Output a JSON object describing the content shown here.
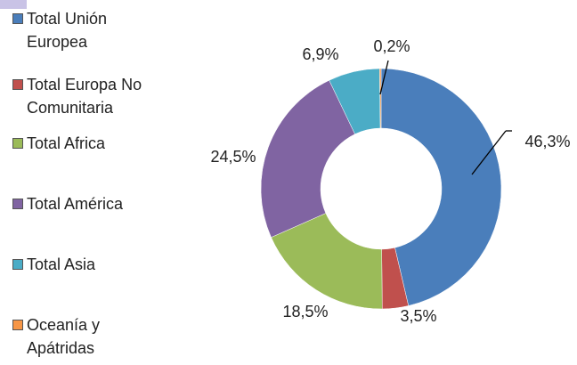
{
  "chart_data": {
    "type": "donut",
    "categories": [
      "Total Unión Europea",
      "Total Europa No Comunitaria",
      "Total Africa",
      "Total América",
      "Total Asia",
      "Oceanía y Apátridas"
    ],
    "values": [
      46.3,
      3.5,
      18.5,
      24.5,
      6.9,
      0.2
    ],
    "value_labels": [
      "46,3%",
      "3,5%",
      "18,5%",
      "24,5%",
      "6,9%",
      "0,2%"
    ],
    "colors": [
      "#4a7ebb",
      "#c0504d",
      "#9bbb59",
      "#8064a2",
      "#4bacc6",
      "#f79646"
    ],
    "legend": "left"
  }
}
